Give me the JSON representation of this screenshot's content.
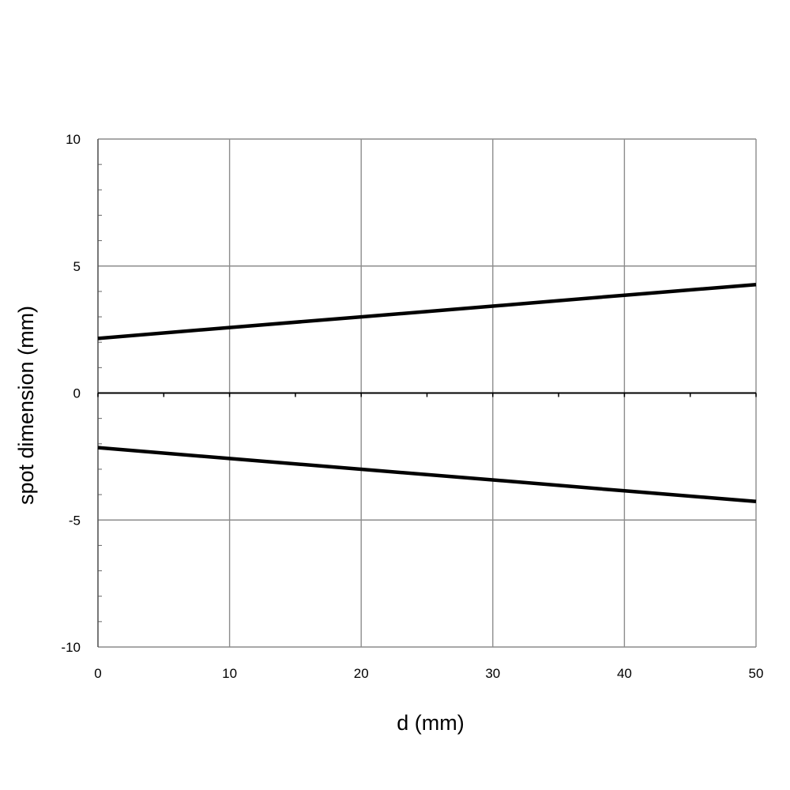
{
  "chart_data": {
    "type": "line",
    "title": "",
    "xlabel": "d (mm)",
    "ylabel": "spot dimension (mm)",
    "xlim": [
      0,
      50
    ],
    "ylim": [
      -10,
      10
    ],
    "x_ticks": [
      "0",
      "10",
      "20",
      "30",
      "40",
      "50"
    ],
    "y_ticks": [
      "10",
      "5",
      "0",
      "-5",
      "-10"
    ],
    "grid": true,
    "legend": "none",
    "series": [
      {
        "x": [
          0,
          10,
          20,
          30,
          40,
          50
        ],
        "y": [
          2.15,
          2.58,
          3.0,
          3.42,
          3.85,
          4.27
        ],
        "color": "#000000"
      },
      {
        "x": [
          0,
          10,
          20,
          30,
          40,
          50
        ],
        "y": [
          -2.15,
          -2.58,
          -3.0,
          -3.42,
          -3.85,
          -4.27
        ],
        "color": "#000000"
      }
    ]
  }
}
